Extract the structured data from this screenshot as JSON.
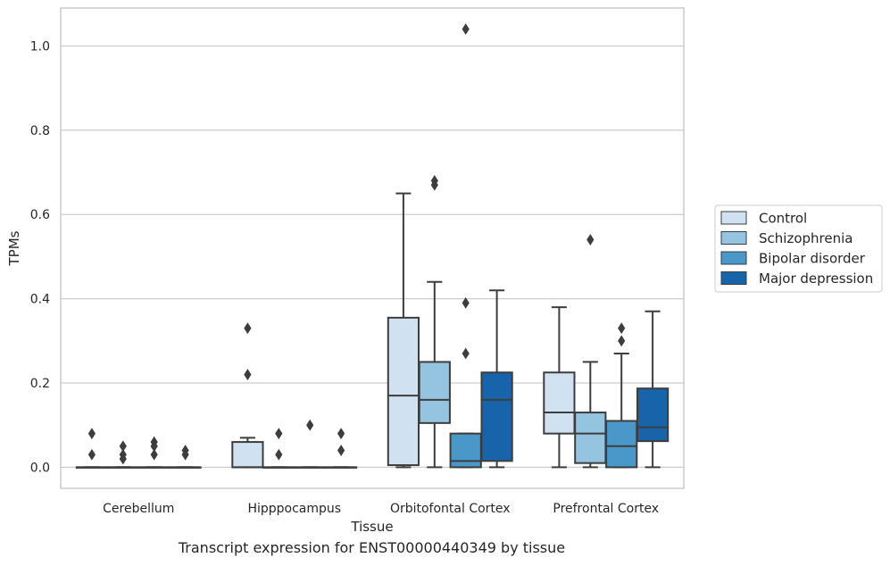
{
  "caption": "Transcript expression for ENST00000440349 by tissue",
  "chart_data": {
    "type": "box",
    "xlabel": "Tissue",
    "ylabel": "TPMs",
    "ylim": [
      -0.05,
      1.09
    ],
    "yticks": [
      0.0,
      0.2,
      0.4,
      0.6,
      0.8,
      1.0
    ],
    "ytick_labels": [
      "0.0",
      "0.2",
      "0.4",
      "0.6",
      "0.8",
      "1.0"
    ],
    "grid": "horizontal",
    "legend_placement": "right",
    "categories": [
      "Cerebellum",
      "Hipppocampus",
      "Orbitofontal Cortex",
      "Prefrontal Cortex"
    ],
    "series": [
      {
        "name": "Control",
        "color": "#d0e1f2",
        "boxes": [
          {
            "whislo": 0,
            "q1": 0,
            "med": 0,
            "q3": 0,
            "whishi": 0,
            "fliers": [
              0.08,
              0.03
            ]
          },
          {
            "whislo": 0,
            "q1": 0,
            "med": 0,
            "q3": 0.06,
            "whishi": 0.07,
            "fliers": [
              0.33,
              0.22
            ]
          },
          {
            "whislo": 0,
            "q1": 0.005,
            "med": 0.17,
            "q3": 0.355,
            "whishi": 0.65,
            "fliers": []
          },
          {
            "whislo": 0,
            "q1": 0.08,
            "med": 0.13,
            "q3": 0.225,
            "whishi": 0.38,
            "fliers": []
          }
        ]
      },
      {
        "name": "Schizophrenia",
        "color": "#94c4df",
        "boxes": [
          {
            "whislo": 0,
            "q1": 0,
            "med": 0,
            "q3": 0,
            "whishi": 0,
            "fliers": [
              0.05,
              0.03,
              0.02
            ]
          },
          {
            "whislo": 0,
            "q1": 0,
            "med": 0,
            "q3": 0,
            "whishi": 0,
            "fliers": [
              0.08,
              0.03
            ]
          },
          {
            "whislo": 0,
            "q1": 0.105,
            "med": 0.16,
            "q3": 0.25,
            "whishi": 0.44,
            "fliers": [
              0.68,
              0.67
            ]
          },
          {
            "whislo": 0,
            "q1": 0.01,
            "med": 0.08,
            "q3": 0.13,
            "whishi": 0.25,
            "fliers": [
              0.54
            ]
          }
        ]
      },
      {
        "name": "Bipolar disorder",
        "color": "#4a98c9",
        "boxes": [
          {
            "whislo": 0,
            "q1": 0,
            "med": 0,
            "q3": 0,
            "whishi": 0,
            "fliers": [
              0.06,
              0.05,
              0.03
            ]
          },
          {
            "whislo": 0,
            "q1": 0,
            "med": 0,
            "q3": 0,
            "whishi": 0,
            "fliers": [
              0.1
            ]
          },
          {
            "whislo": 0,
            "q1": 0,
            "med": 0.015,
            "q3": 0.08,
            "whishi": 0.08,
            "fliers": [
              1.04,
              0.39,
              0.27
            ]
          },
          {
            "whislo": 0,
            "q1": 0,
            "med": 0.05,
            "q3": 0.11,
            "whishi": 0.27,
            "fliers": [
              0.33,
              0.3
            ]
          }
        ]
      },
      {
        "name": "Major depression",
        "color": "#1764ab",
        "boxes": [
          {
            "whislo": 0,
            "q1": 0,
            "med": 0,
            "q3": 0,
            "whishi": 0,
            "fliers": [
              0.04,
              0.03
            ]
          },
          {
            "whislo": 0,
            "q1": 0,
            "med": 0,
            "q3": 0,
            "whishi": 0,
            "fliers": [
              0.08,
              0.04
            ]
          },
          {
            "whislo": 0,
            "q1": 0.015,
            "med": 0.16,
            "q3": 0.225,
            "whishi": 0.42,
            "fliers": []
          },
          {
            "whislo": 0,
            "q1": 0.062,
            "med": 0.095,
            "q3": 0.187,
            "whishi": 0.37,
            "fliers": []
          }
        ]
      }
    ]
  }
}
